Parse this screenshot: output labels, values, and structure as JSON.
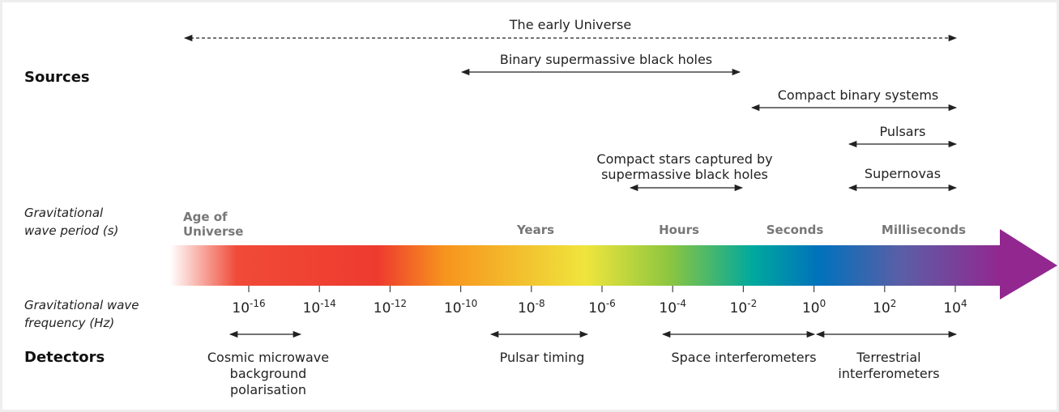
{
  "row_labels": {
    "sources": "Sources",
    "period": [
      "Gravitational",
      "wave period (s)"
    ],
    "frequency": [
      "Gravitational wave",
      "frequency (Hz)"
    ],
    "detectors": "Detectors"
  },
  "sources": [
    {
      "label": [
        "The early Universe"
      ],
      "dashed": true
    },
    {
      "label": [
        "Binary supermassive black holes"
      ]
    },
    {
      "label": [
        "Compact binary systems"
      ]
    },
    {
      "label": [
        "Pulsars"
      ]
    },
    {
      "label": [
        "Compact stars captured by",
        "supermassive black holes"
      ]
    },
    {
      "label": [
        "Supernovas"
      ]
    }
  ],
  "periods": [
    [
      "Age of",
      "Universe"
    ],
    [
      "Years"
    ],
    [
      "Hours"
    ],
    [
      "Seconds"
    ],
    [
      "Milliseconds"
    ]
  ],
  "frequency_ticks": [
    {
      "base": "10",
      "exponent": "-16"
    },
    {
      "base": "10",
      "exponent": "-14"
    },
    {
      "base": "10",
      "exponent": "-12"
    },
    {
      "base": "10",
      "exponent": "-10"
    },
    {
      "base": "10",
      "exponent": "-8"
    },
    {
      "base": "10",
      "exponent": "-6"
    },
    {
      "base": "10",
      "exponent": "-4"
    },
    {
      "base": "10",
      "exponent": "-2"
    },
    {
      "base": "10",
      "exponent": "0"
    },
    {
      "base": "10",
      "exponent": "2"
    },
    {
      "base": "10",
      "exponent": "4"
    }
  ],
  "detectors": [
    {
      "label": [
        "Cosmic microwave",
        "background",
        "polarisation"
      ]
    },
    {
      "label": [
        "Pulsar timing"
      ]
    },
    {
      "label": [
        "Space interferometers"
      ]
    },
    {
      "label": [
        "Terrestrial",
        "interferometers"
      ]
    }
  ]
}
